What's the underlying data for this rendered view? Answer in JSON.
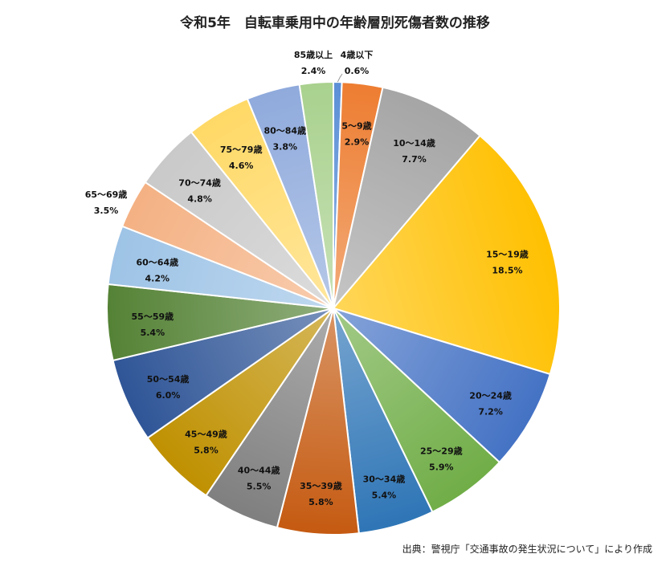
{
  "chart_data": {
    "type": "pie",
    "title": "令和5年　自転車乗用中の年齢層別死傷者数の推移",
    "source": "出典：警視庁「交通事故の発生状況について」により作成",
    "slices": [
      {
        "label": "4歳以下",
        "value": 0.6,
        "value_label": "0.6%",
        "color": "#5b8fd6"
      },
      {
        "label": "5～9歳",
        "value": 2.9,
        "value_label": "2.9%",
        "color": "#ed7d31"
      },
      {
        "label": "10～14歳",
        "value": 7.7,
        "value_label": "7.7%",
        "color": "#a5a5a5"
      },
      {
        "label": "15～19歳",
        "value": 18.5,
        "value_label": "18.5%",
        "color": "#ffc000"
      },
      {
        "label": "20～24歳",
        "value": 7.2,
        "value_label": "7.2%",
        "color": "#4472c4"
      },
      {
        "label": "25～29歳",
        "value": 5.9,
        "value_label": "5.9%",
        "color": "#70ad47"
      },
      {
        "label": "30～34歳",
        "value": 5.4,
        "value_label": "5.4%",
        "color": "#2e75b6"
      },
      {
        "label": "35～39歳",
        "value": 5.8,
        "value_label": "5.8%",
        "color": "#c55a11"
      },
      {
        "label": "40～44歳",
        "value": 5.5,
        "value_label": "5.5%",
        "color": "#7f7f7f"
      },
      {
        "label": "45～49歳",
        "value": 5.8,
        "value_label": "5.8%",
        "color": "#bf9000"
      },
      {
        "label": "50～54歳",
        "value": 6.0,
        "value_label": "6.0%",
        "color": "#2f5597"
      },
      {
        "label": "55～59歳",
        "value": 5.4,
        "value_label": "5.4%",
        "color": "#548235"
      },
      {
        "label": "60～64歳",
        "value": 4.2,
        "value_label": "4.2%",
        "color": "#9dc3e6"
      },
      {
        "label": "65～69歳",
        "value": 3.5,
        "value_label": "3.5%",
        "color": "#f4b183"
      },
      {
        "label": "70～74歳",
        "value": 4.8,
        "value_label": "4.8%",
        "color": "#c9c9c9"
      },
      {
        "label": "75～79歳",
        "value": 4.6,
        "value_label": "4.6%",
        "color": "#ffd966"
      },
      {
        "label": "80～84歳",
        "value": 3.8,
        "value_label": "3.8%",
        "color": "#8faadc"
      },
      {
        "label": "85歳以上",
        "value": 2.4,
        "value_label": "2.4%",
        "color": "#a9d18e"
      }
    ],
    "legend": "none"
  }
}
